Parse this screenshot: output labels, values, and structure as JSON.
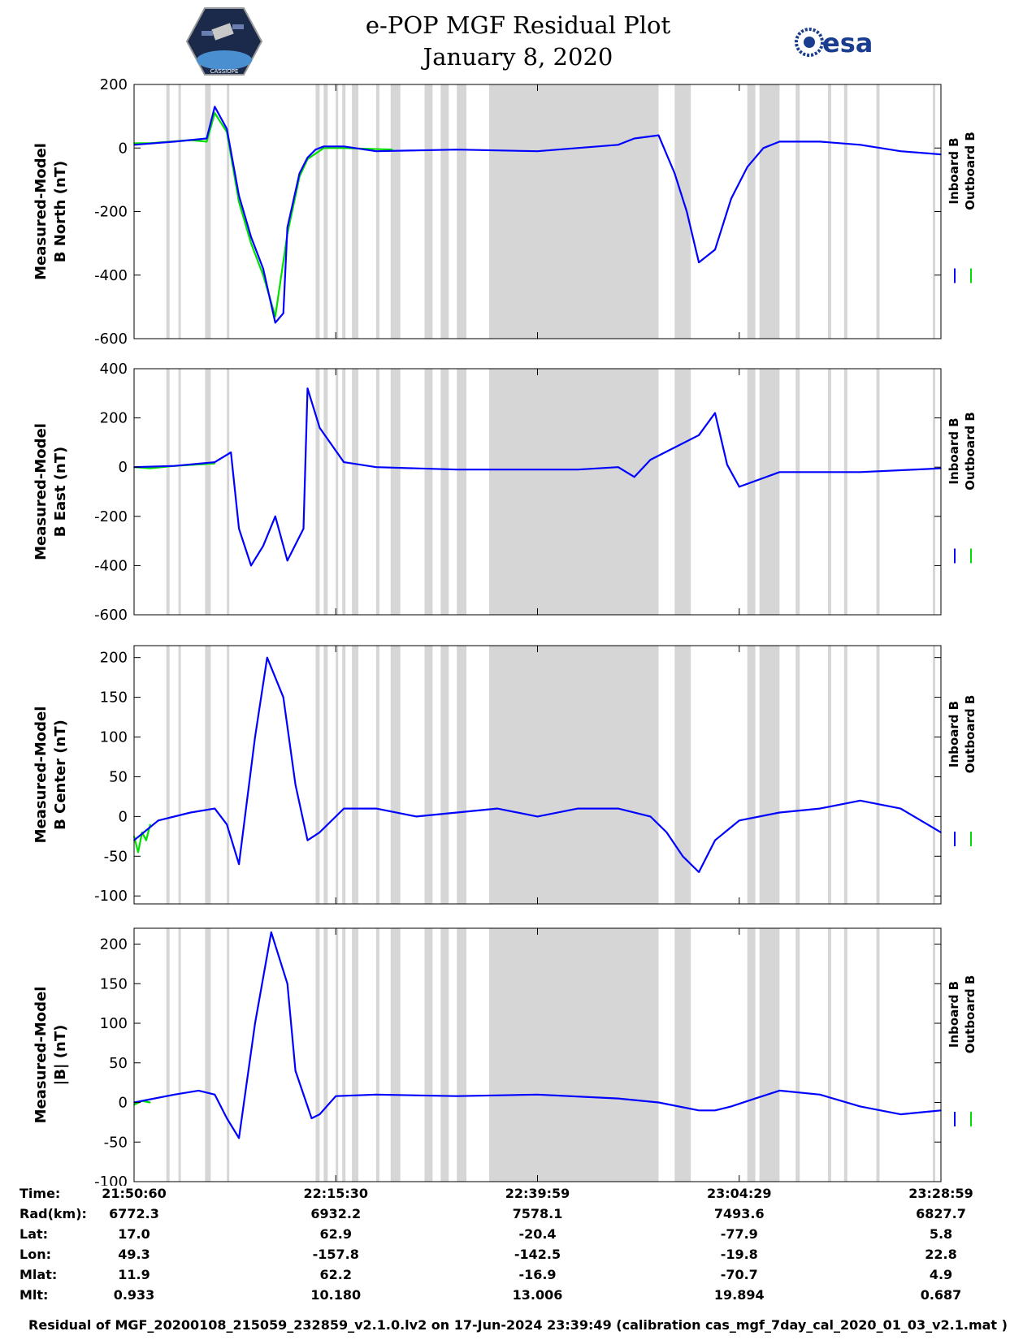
{
  "header": {
    "title_line1": "e-POP MGF Residual Plot",
    "title_line2": "January 8, 2020",
    "logo_left_text": "CASSIOPE",
    "logo_right_text": "esa"
  },
  "colors": {
    "inboard": "#0000ff",
    "outboard": "#00e000",
    "gap_band": "#d6d6d6"
  },
  "chart_data": [
    {
      "type": "line",
      "ylabel_lines": [
        "Measured-Model",
        "B North (nT)"
      ],
      "ylim": [
        -600,
        200
      ],
      "yticks": [
        "200",
        "0",
        "-200",
        "-400",
        "-600"
      ],
      "yvals": [
        200,
        0,
        -200,
        -400,
        -600
      ],
      "legend": [
        "Inboard B",
        "Outboard B"
      ],
      "series": [
        {
          "name": "Inboard B",
          "x": [
            0,
            0.05,
            0.09,
            0.1,
            0.115,
            0.13,
            0.145,
            0.16,
            0.175,
            0.185,
            0.19,
            0.205,
            0.215,
            0.225,
            0.235,
            0.26,
            0.3,
            0.4,
            0.5,
            0.6,
            0.62,
            0.65,
            0.67,
            0.685,
            0.7,
            0.72,
            0.74,
            0.76,
            0.78,
            0.8,
            0.85,
            0.9,
            0.95,
            1.0
          ],
          "values": [
            10,
            20,
            30,
            130,
            60,
            -150,
            -280,
            -380,
            -550,
            -520,
            -250,
            -80,
            -30,
            -5,
            5,
            5,
            -10,
            -5,
            -10,
            10,
            30,
            40,
            -80,
            -200,
            -360,
            -320,
            -160,
            -60,
            0,
            20,
            20,
            10,
            -10,
            -20
          ]
        },
        {
          "name": "Outboard B",
          "x": [
            0,
            0.02,
            0.07,
            0.09,
            0.1,
            0.115,
            0.13,
            0.145,
            0.16,
            0.175,
            0.19,
            0.205,
            0.215,
            0.235,
            0.26,
            0.32
          ],
          "values": [
            15,
            15,
            25,
            20,
            110,
            50,
            -170,
            -300,
            -400,
            -530,
            -270,
            -90,
            -35,
            0,
            0,
            -5
          ]
        }
      ]
    },
    {
      "type": "line",
      "ylabel_lines": [
        "Measured-Model",
        "B East (nT)"
      ],
      "ylim": [
        -600,
        400
      ],
      "yticks": [
        "400",
        "200",
        "0",
        "-200",
        "-400",
        "-600"
      ],
      "yvals": [
        400,
        200,
        0,
        -200,
        -400,
        -600
      ],
      "legend": [
        "Inboard B",
        "Outboard B"
      ],
      "series": [
        {
          "name": "Inboard B",
          "x": [
            0,
            0.05,
            0.1,
            0.12,
            0.13,
            0.145,
            0.16,
            0.175,
            0.19,
            0.21,
            0.215,
            0.23,
            0.26,
            0.3,
            0.4,
            0.5,
            0.55,
            0.6,
            0.62,
            0.64,
            0.67,
            0.7,
            0.72,
            0.735,
            0.75,
            0.8,
            0.9,
            1.0
          ],
          "values": [
            0,
            5,
            20,
            60,
            -250,
            -400,
            -320,
            -200,
            -380,
            -250,
            320,
            160,
            20,
            0,
            -10,
            -10,
            -10,
            0,
            -40,
            30,
            80,
            130,
            220,
            10,
            -80,
            -20,
            -20,
            -5
          ]
        },
        {
          "name": "Outboard B",
          "x": [
            0,
            0.02,
            0.05,
            0.1
          ],
          "values": [
            0,
            -5,
            5,
            15
          ]
        }
      ]
    },
    {
      "type": "line",
      "ylabel_lines": [
        "Measured-Model",
        "B Center (nT)"
      ],
      "ylim": [
        -110,
        215
      ],
      "yticks": [
        "200",
        "150",
        "100",
        "50",
        "0",
        "-50",
        "-100"
      ],
      "yvals": [
        200,
        150,
        100,
        50,
        0,
        -50,
        -100
      ],
      "legend": [
        "Inboard B",
        "Outboard B"
      ],
      "series": [
        {
          "name": "Inboard B",
          "x": [
            0,
            0.03,
            0.07,
            0.1,
            0.115,
            0.13,
            0.15,
            0.165,
            0.185,
            0.2,
            0.215,
            0.23,
            0.26,
            0.3,
            0.35,
            0.4,
            0.45,
            0.5,
            0.55,
            0.6,
            0.64,
            0.66,
            0.68,
            0.7,
            0.72,
            0.75,
            0.8,
            0.85,
            0.9,
            0.95,
            1.0
          ],
          "values": [
            -30,
            -5,
            5,
            10,
            -10,
            -60,
            100,
            200,
            150,
            40,
            -30,
            -20,
            10,
            10,
            0,
            5,
            10,
            0,
            10,
            10,
            0,
            -20,
            -50,
            -70,
            -30,
            -5,
            5,
            10,
            20,
            10,
            -20
          ]
        },
        {
          "name": "Outboard B",
          "x": [
            0,
            0.005,
            0.01,
            0.015,
            0.02
          ],
          "values": [
            -25,
            -45,
            -20,
            -30,
            -10
          ]
        }
      ]
    },
    {
      "type": "line",
      "ylabel_lines": [
        "Measured-Model",
        "|B| (nT)"
      ],
      "ylim": [
        -100,
        220
      ],
      "yticks": [
        "200",
        "150",
        "100",
        "50",
        "0",
        "-50",
        "-100"
      ],
      "yvals": [
        200,
        150,
        100,
        50,
        0,
        -50,
        -100
      ],
      "legend": [
        "Inboard B",
        "Outboard B"
      ],
      "series": [
        {
          "name": "Inboard B",
          "x": [
            0,
            0.05,
            0.08,
            0.1,
            0.115,
            0.13,
            0.15,
            0.17,
            0.19,
            0.2,
            0.22,
            0.23,
            0.25,
            0.3,
            0.4,
            0.5,
            0.6,
            0.65,
            0.7,
            0.72,
            0.74,
            0.77,
            0.8,
            0.85,
            0.9,
            0.95,
            1.0
          ],
          "values": [
            0,
            10,
            15,
            10,
            -20,
            -45,
            100,
            215,
            150,
            40,
            -20,
            -15,
            8,
            10,
            8,
            10,
            5,
            0,
            -10,
            -10,
            -5,
            5,
            15,
            10,
            -5,
            -15,
            -10
          ]
        },
        {
          "name": "Outboard B",
          "x": [
            0,
            0.01,
            0.02
          ],
          "values": [
            -3,
            2,
            0
          ]
        }
      ]
    }
  ],
  "x_axis": {
    "tick_labels": [
      "21:50:60",
      "22:15:30",
      "22:39:59",
      "23:04:29",
      "23:28:59"
    ],
    "tick_fracs": [
      0,
      0.25,
      0.5,
      0.75,
      1.0
    ],
    "gap_bands": [
      [
        0.04,
        0.044
      ],
      [
        0.055,
        0.058
      ],
      [
        0.088,
        0.095
      ],
      [
        0.115,
        0.118
      ],
      [
        0.225,
        0.23
      ],
      [
        0.235,
        0.24
      ],
      [
        0.25,
        0.253
      ],
      [
        0.258,
        0.262
      ],
      [
        0.27,
        0.278
      ],
      [
        0.3,
        0.304
      ],
      [
        0.318,
        0.33
      ],
      [
        0.36,
        0.37
      ],
      [
        0.38,
        0.39
      ],
      [
        0.4,
        0.412
      ],
      [
        0.44,
        0.65
      ],
      [
        0.67,
        0.69
      ],
      [
        0.76,
        0.77
      ],
      [
        0.775,
        0.8
      ],
      [
        0.82,
        0.825
      ],
      [
        0.86,
        0.864
      ],
      [
        0.88,
        0.884
      ],
      [
        0.92,
        0.924
      ],
      [
        0.99,
        0.993
      ]
    ]
  },
  "info_table": {
    "rows": [
      {
        "label": "Time:",
        "values": [
          "21:50:60",
          "22:15:30",
          "22:39:59",
          "23:04:29",
          "23:28:59"
        ]
      },
      {
        "label": "Rad(km):",
        "values": [
          "6772.3",
          "6932.2",
          "7578.1",
          "7493.6",
          "6827.7"
        ]
      },
      {
        "label": "Lat:",
        "values": [
          "17.0",
          "62.9",
          "-20.4",
          "-77.9",
          "5.8"
        ]
      },
      {
        "label": "Lon:",
        "values": [
          "49.3",
          "-157.8",
          "-142.5",
          "-19.8",
          "22.8"
        ]
      },
      {
        "label": "Mlat:",
        "values": [
          "11.9",
          "62.2",
          "-16.9",
          "-70.7",
          "4.9"
        ]
      },
      {
        "label": "Mlt:",
        "values": [
          "0.933",
          "10.180",
          "13.006",
          "19.894",
          "0.687"
        ]
      }
    ]
  },
  "footer": "Residual of MGF_20200108_215059_232859_v2.1.0.lv2 on 17-Jun-2024 23:39:49 (calibration cas_mgf_7day_cal_2020_01_03_v2.1.mat )"
}
